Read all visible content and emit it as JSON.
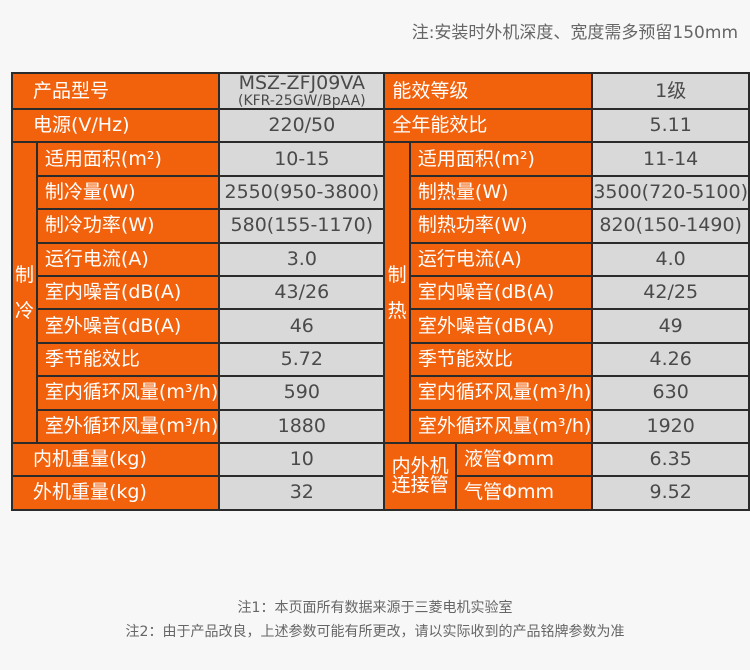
{
  "top_note": "注:安装时外机深度、宽度需多预留150mm",
  "header": {
    "model_label": "产品型号",
    "model_main": "MSZ-ZFJ09VA",
    "model_sub": "(KFR-25GW/BpAA)",
    "efficiency_grade_label": "能效等级",
    "efficiency_grade_value": "1级",
    "power_label": "电源(V/Hz)",
    "power_value": "220/50",
    "apf_label": "全年能效比",
    "apf_value": "5.11"
  },
  "cooling": {
    "title": "制冷",
    "rows": [
      {
        "label": "适用面积(m²)",
        "value": "10-15"
      },
      {
        "label": "制冷量(W)",
        "value": "2550(950-3800)"
      },
      {
        "label": "制冷功率(W)",
        "value": "580(155-1170)"
      },
      {
        "label": "运行电流(A)",
        "value": "3.0"
      },
      {
        "label": "室内噪音(dB(A)",
        "value": "43/26"
      },
      {
        "label": "室外噪音(dB(A)",
        "value": "46"
      },
      {
        "label": "季节能效比",
        "value": "5.72"
      },
      {
        "label": "室内循环风量(m³/h)",
        "value": "590"
      },
      {
        "label": "室外循环风量(m³/h)",
        "value": "1880"
      }
    ]
  },
  "heating": {
    "title": "制热",
    "rows": [
      {
        "label": "适用面积(m²)",
        "value": "11-14"
      },
      {
        "label": "制热量(W)",
        "value": "3500(720-5100)"
      },
      {
        "label": "制热功率(W)",
        "value": "820(150-1490)"
      },
      {
        "label": "运行电流(A)",
        "value": "4.0"
      },
      {
        "label": "室内噪音(dB(A)",
        "value": "42/25"
      },
      {
        "label": "室外噪音(dB(A)",
        "value": "49"
      },
      {
        "label": "季节能效比",
        "value": "4.26"
      },
      {
        "label": "室内循环风量(m³/h)",
        "value": "630"
      },
      {
        "label": "室外循环风量(m³/h)",
        "value": "1920"
      }
    ]
  },
  "weights": {
    "indoor_label": "内机重量(kg)",
    "indoor_value": "10",
    "outdoor_label": "外机重量(kg)",
    "outdoor_value": "32"
  },
  "pipes": {
    "group_label_line1": "内外机",
    "group_label_line2": "连接管",
    "liquid_label": "液管Φmm",
    "liquid_value": "6.35",
    "gas_label": "气管Φmm",
    "gas_value": "9.52"
  },
  "footnotes": [
    "注1：本页面所有数据来源于三菱电机实验室",
    "注2：由于产品改良，上述参数可能有所更改，请以实际收到的产品铭牌参数为准"
  ]
}
